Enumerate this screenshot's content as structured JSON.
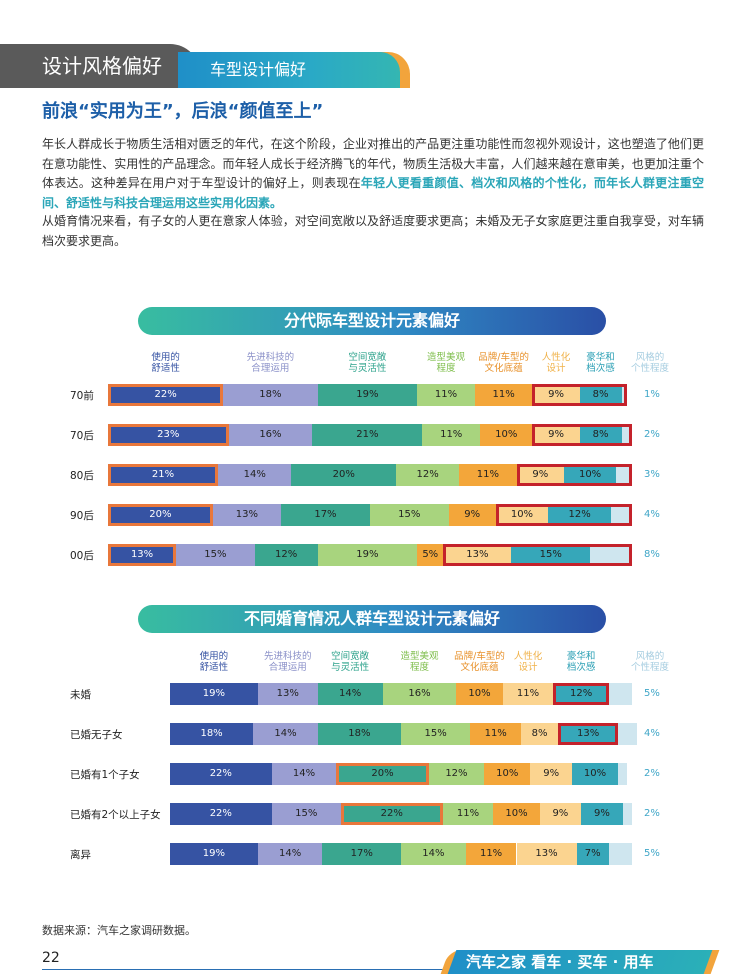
{
  "header": {
    "section": "设计风格偏好",
    "subsection": "车型设计偏好"
  },
  "heading": "前浪“实用为王”，后浪“颜值至上”",
  "para1": {
    "plain": "年长人群成长于物质生活相对匮乏的年代，在这个阶段，企业对推出的产品更注重功能性而忽视外观设计，这也塑造了他们更在意功能性、实用性的产品理念。而年轻人成长于经济腾飞的年代，物质生活极大丰富，人们越来越在意审美，也更加注重个体表达。这种差异在用户对于车型设计的偏好上，则表现在",
    "highlight": "年轻人更看重颜值、档次和风格的个性化，而年长人群更注重空间、舒适性与科技合理运用这些实用化因素。"
  },
  "para2": "从婚育情况来看，有子女的人更在意家人体验，对空间宽敞以及舒适度要求更高；未婚及无子女家庭更注重自我享受，对车辆档次要求更高。",
  "colors": {
    "comfort": "#3653a3",
    "tech": "#9a9ed2",
    "space": "#3aa68f",
    "styling": "#a8d47e",
    "brand": "#f3a63a",
    "human": "#fbd490",
    "luxury": "#36a7b9",
    "style": "#cfe6ef"
  },
  "chart_data": [
    {
      "type": "bar",
      "stacked": true,
      "orientation": "horizontal",
      "title": "分代际车型设计元素偏好",
      "series_labels": [
        "使用的\n舒适性",
        "先进科技的\n合理运用",
        "空间宽敞\n与灵活性",
        "造型美观\n程度",
        "品牌/车型的\n文化底蕴",
        "人性化\n设计",
        "豪华和\n档次感",
        "风格的\n个性程度"
      ],
      "categories": [
        "70前",
        "70后",
        "80后",
        "90后",
        "00后"
      ],
      "values": [
        [
          22,
          18,
          19,
          11,
          11,
          9,
          8,
          1
        ],
        [
          23,
          16,
          21,
          11,
          10,
          9,
          8,
          2
        ],
        [
          21,
          14,
          20,
          12,
          11,
          9,
          10,
          3
        ],
        [
          20,
          13,
          17,
          15,
          9,
          10,
          12,
          4
        ],
        [
          13,
          15,
          12,
          19,
          5,
          13,
          15,
          8
        ]
      ],
      "labels": [
        [
          "22%",
          "18%",
          "19%",
          "11%",
          "11%",
          "9%",
          "8%",
          "1%"
        ],
        [
          "23%",
          "16%",
          "21%",
          "11%",
          "10%",
          "9%",
          "8%",
          "2%"
        ],
        [
          "21%",
          "14%",
          "20%",
          "12%",
          "11%",
          "9%",
          "10%",
          "3%"
        ],
        [
          "20%",
          "13%",
          "17%",
          "15%",
          "9%",
          "10%",
          "12%",
          "4%"
        ],
        [
          "13%",
          "15%",
          "12%",
          "19%",
          "5%",
          "13%",
          "15%",
          "8%"
        ]
      ]
    },
    {
      "type": "bar",
      "stacked": true,
      "orientation": "horizontal",
      "title": "不同婚育情况人群车型设计元素偏好",
      "series_labels": [
        "使用的\n舒适性",
        "先进科技的\n合理运用",
        "空间宽敞\n与灵活性",
        "造型美观\n程度",
        "品牌/车型的\n文化底蕴",
        "人性化\n设计",
        "豪华和\n档次感",
        "风格的\n个性程度"
      ],
      "categories": [
        "未婚",
        "已婚无子女",
        "已婚有1个子女",
        "已婚有2个以上子女",
        "离异"
      ],
      "values": [
        [
          19,
          13,
          14,
          16,
          10,
          11,
          12,
          5
        ],
        [
          18,
          14,
          18,
          15,
          11,
          8,
          13,
          4
        ],
        [
          22,
          14,
          20,
          12,
          10,
          9,
          10,
          2
        ],
        [
          22,
          15,
          22,
          11,
          10,
          9,
          9,
          2
        ],
        [
          19,
          14,
          17,
          14,
          11,
          13,
          7,
          5
        ]
      ],
      "labels": [
        [
          "19%",
          "13%",
          "14%",
          "16%",
          "10%",
          "11%",
          "12%",
          "5%"
        ],
        [
          "18%",
          "14%",
          "18%",
          "15%",
          "11%",
          "8%",
          "13%",
          "4%"
        ],
        [
          "22%",
          "14%",
          "20%",
          "12%",
          "10%",
          "9%",
          "10%",
          "2%"
        ],
        [
          "22%",
          "15%",
          "22%",
          "11%",
          "10%",
          "9%",
          "9%",
          "2%"
        ],
        [
          "19%",
          "14%",
          "17%",
          "14%",
          "11%",
          "13%",
          "7%",
          "5%"
        ]
      ]
    }
  ],
  "source": "数据来源：汽车之家调研数据。",
  "page_number": "22",
  "footer_brand": "汽车之家 看车 · 买车 · 用车"
}
